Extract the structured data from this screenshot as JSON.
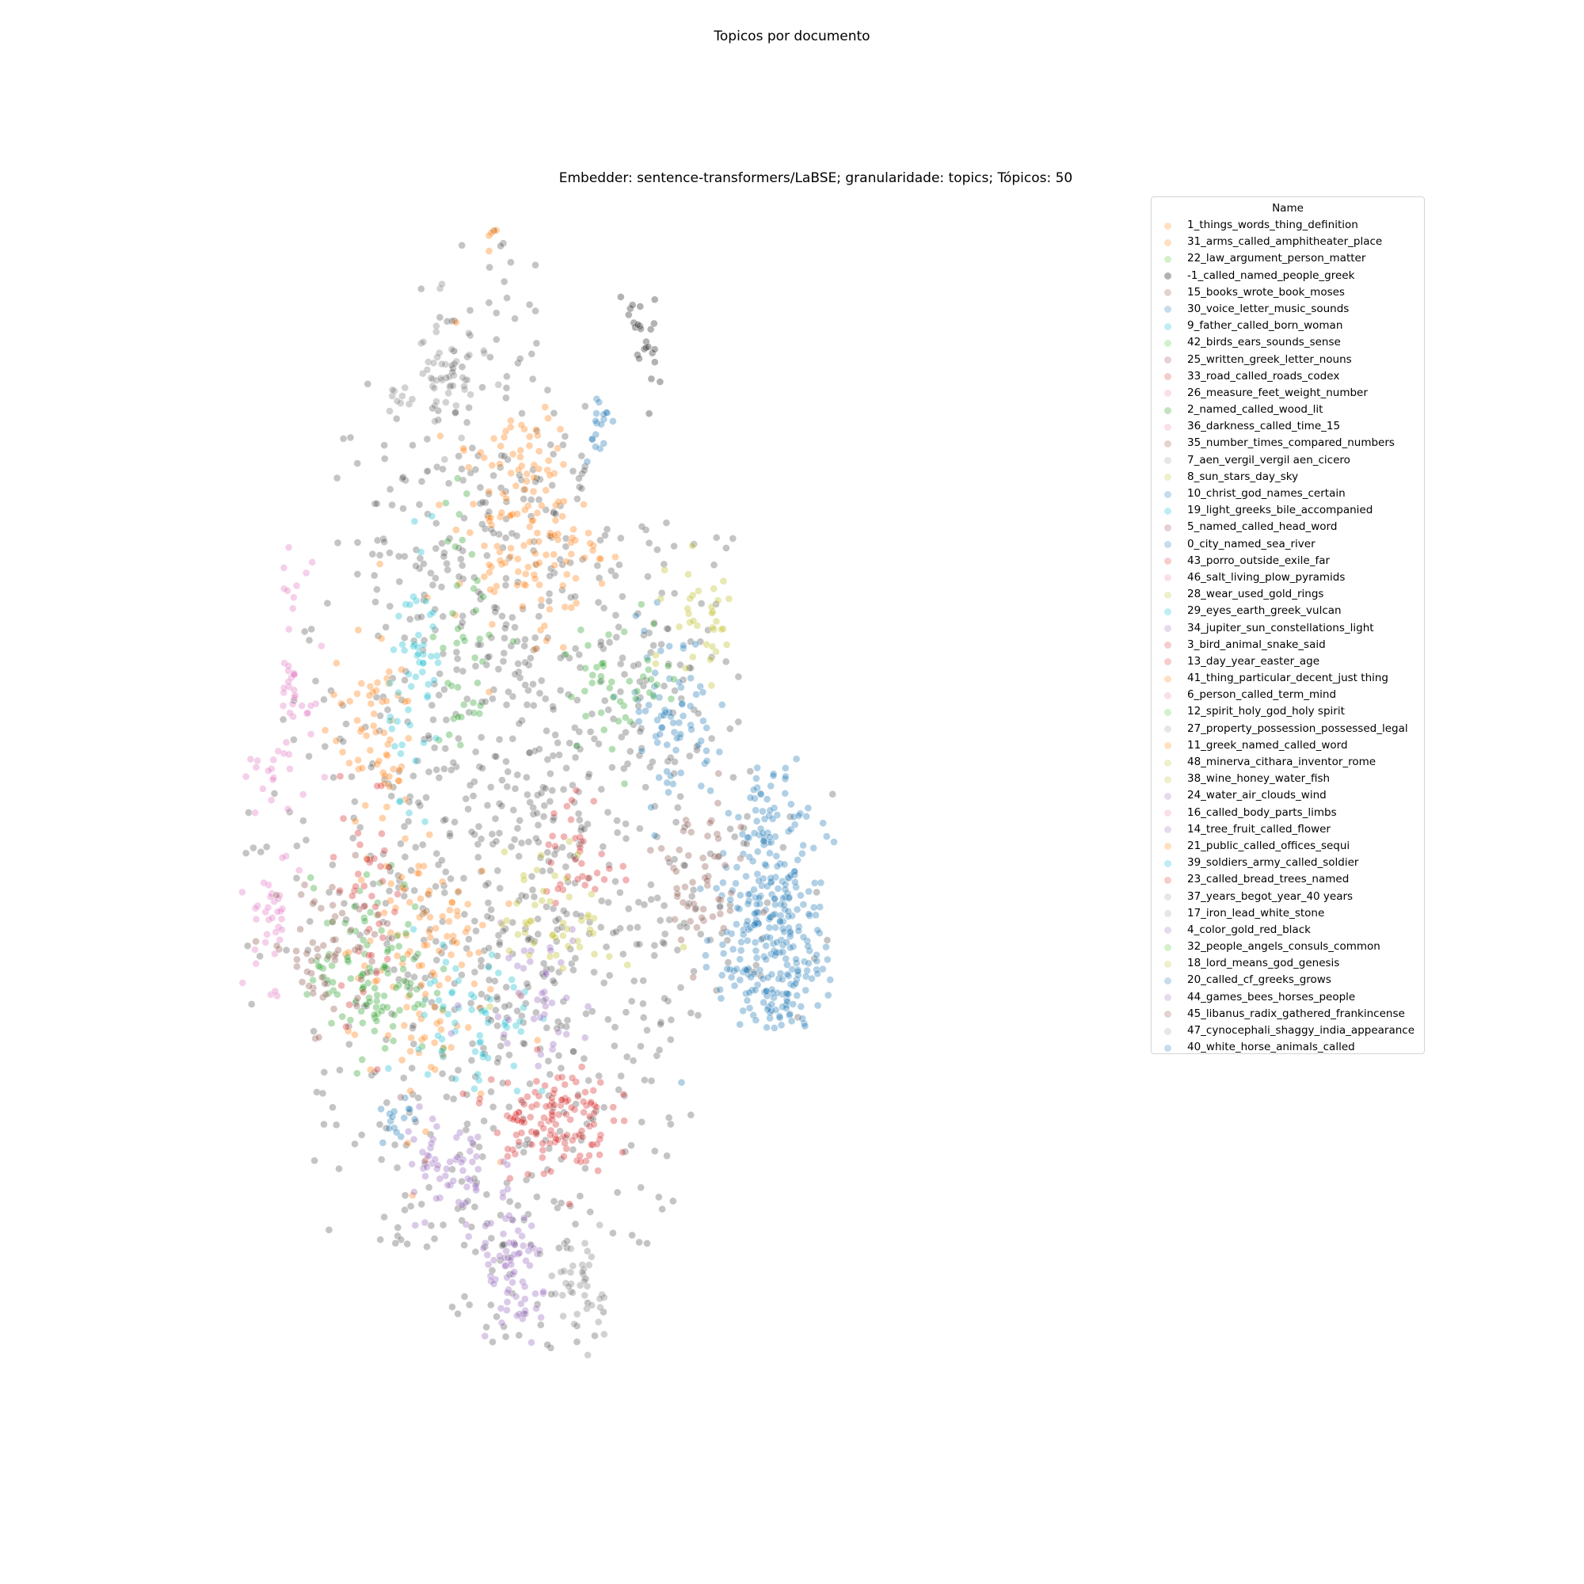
{
  "figure": {
    "suptitle": "Topicos por documento"
  },
  "chart_data": {
    "type": "scatter",
    "title": "Embedder: sentence-transformers/LaBSE; granularidade: topics; Tópicos: 50",
    "xlabel": "",
    "ylabel": "",
    "axes_visible": false,
    "grid": false,
    "legend": {
      "title": "Name",
      "placement": "top-right",
      "entries": [
        {
          "name": "1_things_words_thing_definition",
          "color": "#ffbb78"
        },
        {
          "name": "31_arms_called_amphitheater_place",
          "color": "#ffbb78"
        },
        {
          "name": "22_law_argument_person_matter",
          "color": "#98df8a"
        },
        {
          "name": "-1_called_named_people_greek",
          "color": "#555555"
        },
        {
          "name": "15_books_wrote_book_moses",
          "color": "#c49c94"
        },
        {
          "name": "30_voice_letter_music_sounds",
          "color": "#7fb2d8"
        },
        {
          "name": "9_father_called_born_woman",
          "color": "#6fd8e6"
        },
        {
          "name": "42_birds_ears_sounds_sense",
          "color": "#98df8a"
        },
        {
          "name": "25_written_greek_letter_nouns",
          "color": "#c49c94"
        },
        {
          "name": "33_road_called_roads_codex",
          "color": "#ee8f8f"
        },
        {
          "name": "26_measure_feet_weight_number",
          "color": "#f7b6d2"
        },
        {
          "name": "2_named_called_wood_lit",
          "color": "#78c26e"
        },
        {
          "name": "36_darkness_called_time_15",
          "color": "#f7b6d2"
        },
        {
          "name": "35_number_times_compared_numbers",
          "color": "#c49c94"
        },
        {
          "name": "7_aen_vergil_vergil aen_cicero",
          "color": "#c7c7c7"
        },
        {
          "name": "8_sun_stars_day_sky",
          "color": "#dbdb8d"
        },
        {
          "name": "10_christ_god_names_certain",
          "color": "#7fb2d8"
        },
        {
          "name": "19_light_greeks_bile_accompanied",
          "color": "#6fd8e6"
        },
        {
          "name": "5_named_called_head_word",
          "color": "#c49c94"
        },
        {
          "name": "0_city_named_sea_river",
          "color": "#7fb2d8"
        },
        {
          "name": "43_porro_outside_exile_far",
          "color": "#ee8f8f"
        },
        {
          "name": "46_salt_living_plow_pyramids",
          "color": "#f7b6d2"
        },
        {
          "name": "28_wear_used_gold_rings",
          "color": "#dbdb8d"
        },
        {
          "name": "29_eyes_earth_greek_vulcan",
          "color": "#6fd8e6"
        },
        {
          "name": "34_jupiter_sun_constellations_light",
          "color": "#c5b0d5"
        },
        {
          "name": "3_bird_animal_snake_said",
          "color": "#ee8f8f"
        },
        {
          "name": "13_day_year_easter_age",
          "color": "#ee8f8f"
        },
        {
          "name": "41_thing_particular_decent_just thing",
          "color": "#ffbb78"
        },
        {
          "name": "6_person_called_term_mind",
          "color": "#f7b6d2"
        },
        {
          "name": "12_spirit_holy_god_holy spirit",
          "color": "#98df8a"
        },
        {
          "name": "27_property_possession_possessed_legal",
          "color": "#c7c7c7"
        },
        {
          "name": "11_greek_named_called_word",
          "color": "#ffbb78"
        },
        {
          "name": "48_minerva_cithara_inventor_rome",
          "color": "#dbdb8d"
        },
        {
          "name": "38_wine_honey_water_fish",
          "color": "#dbdb8d"
        },
        {
          "name": "24_water_air_clouds_wind",
          "color": "#c5b0d5"
        },
        {
          "name": "16_called_body_parts_limbs",
          "color": "#f7b6d2"
        },
        {
          "name": "14_tree_fruit_called_flower",
          "color": "#c5b0d5"
        },
        {
          "name": "21_public_called_offices_sequi",
          "color": "#ffbb78"
        },
        {
          "name": "39_soldiers_army_called_soldier",
          "color": "#6fd8e6"
        },
        {
          "name": "23_called_bread_trees_named",
          "color": "#ee8f8f"
        },
        {
          "name": "37_years_begot_year_40 years",
          "color": "#c7c7c7"
        },
        {
          "name": "17_iron_lead_white_stone",
          "color": "#c7c7c7"
        },
        {
          "name": "4_color_gold_red_black",
          "color": "#c5b0d5"
        },
        {
          "name": "32_people_angels_consuls_common",
          "color": "#98df8a"
        },
        {
          "name": "18_lord_means_god_genesis",
          "color": "#dbdb8d"
        },
        {
          "name": "20_called_cf_greeks_grows",
          "color": "#7fb2d8"
        },
        {
          "name": "44_games_bees_horses_people",
          "color": "#c5b0d5"
        },
        {
          "name": "45_libanus_radix_gathered_frankincense",
          "color": "#c49c94"
        },
        {
          "name": "47_cynocephali_shaggy_india_appearance",
          "color": "#c7c7c7"
        },
        {
          "name": "40_white_horse_animals_called",
          "color": "#7fb2d8"
        }
      ]
    },
    "clusters": [
      {
        "color": "#555555",
        "x": 0.45,
        "y": 0.48,
        "sx": 0.22,
        "sy": 0.3,
        "n": 1100
      },
      {
        "color": "#1f77b4",
        "x": 0.87,
        "y": 0.38,
        "sx": 0.045,
        "sy": 0.085,
        "n": 330
      },
      {
        "color": "#1f77b4",
        "x": 0.7,
        "y": 0.58,
        "sx": 0.04,
        "sy": 0.04,
        "n": 70
      },
      {
        "color": "#1f77b4",
        "x": 0.58,
        "y": 0.84,
        "sx": 0.012,
        "sy": 0.015,
        "n": 18
      },
      {
        "color": "#1f77b4",
        "x": 0.24,
        "y": 0.22,
        "sx": 0.012,
        "sy": 0.012,
        "n": 15
      },
      {
        "color": "#ff7f0e",
        "x": 0.46,
        "y": 0.75,
        "sx": 0.06,
        "sy": 0.05,
        "n": 150
      },
      {
        "color": "#ff7f0e",
        "x": 0.28,
        "y": 0.36,
        "sx": 0.06,
        "sy": 0.07,
        "n": 120
      },
      {
        "color": "#ff7f0e",
        "x": 0.2,
        "y": 0.57,
        "sx": 0.035,
        "sy": 0.04,
        "n": 60
      },
      {
        "color": "#ff7f0e",
        "x": 0.4,
        "y": 1.0,
        "sx": 0.006,
        "sy": 0.008,
        "n": 5
      },
      {
        "color": "#2ca02c",
        "x": 0.2,
        "y": 0.35,
        "sx": 0.05,
        "sy": 0.04,
        "n": 110
      },
      {
        "color": "#2ca02c",
        "x": 0.62,
        "y": 0.61,
        "sx": 0.05,
        "sy": 0.03,
        "n": 45
      },
      {
        "color": "#2ca02c",
        "x": 0.36,
        "y": 0.66,
        "sx": 0.03,
        "sy": 0.06,
        "n": 40
      },
      {
        "color": "#d62728",
        "x": 0.5,
        "y": 0.22,
        "sx": 0.05,
        "sy": 0.025,
        "n": 130
      },
      {
        "color": "#d62728",
        "x": 0.55,
        "y": 0.45,
        "sx": 0.03,
        "sy": 0.03,
        "n": 35
      },
      {
        "color": "#d62728",
        "x": 0.19,
        "y": 0.42,
        "sx": 0.03,
        "sy": 0.05,
        "n": 40
      },
      {
        "color": "#17becf",
        "x": 0.37,
        "y": 0.3,
        "sx": 0.05,
        "sy": 0.04,
        "n": 60
      },
      {
        "color": "#17becf",
        "x": 0.28,
        "y": 0.62,
        "sx": 0.025,
        "sy": 0.05,
        "n": 55
      },
      {
        "color": "#9467bd",
        "x": 0.44,
        "y": 0.08,
        "sx": 0.03,
        "sy": 0.03,
        "n": 70
      },
      {
        "color": "#9467bd",
        "x": 0.33,
        "y": 0.17,
        "sx": 0.04,
        "sy": 0.03,
        "n": 60
      },
      {
        "color": "#9467bd",
        "x": 0.47,
        "y": 0.33,
        "sx": 0.05,
        "sy": 0.03,
        "n": 40
      },
      {
        "color": "#e377c2",
        "x": 0.04,
        "y": 0.61,
        "sx": 0.025,
        "sy": 0.05,
        "n": 55
      },
      {
        "color": "#e377c2",
        "x": 0.03,
        "y": 0.4,
        "sx": 0.02,
        "sy": 0.03,
        "n": 35
      },
      {
        "color": "#8c564b",
        "x": 0.75,
        "y": 0.43,
        "sx": 0.04,
        "sy": 0.035,
        "n": 55
      },
      {
        "color": "#8c564b",
        "x": 0.12,
        "y": 0.36,
        "sx": 0.05,
        "sy": 0.04,
        "n": 60
      },
      {
        "color": "#bcbd22",
        "x": 0.51,
        "y": 0.4,
        "sx": 0.05,
        "sy": 0.03,
        "n": 50
      },
      {
        "color": "#bcbd22",
        "x": 0.76,
        "y": 0.66,
        "sx": 0.03,
        "sy": 0.03,
        "n": 35
      },
      {
        "color": "#7f7f7f",
        "x": 0.31,
        "y": 0.88,
        "sx": 0.04,
        "sy": 0.03,
        "n": 60
      },
      {
        "color": "#7f7f7f",
        "x": 0.55,
        "y": 0.07,
        "sx": 0.03,
        "sy": 0.025,
        "n": 40
      },
      {
        "color": "#222222",
        "x": 0.65,
        "y": 0.91,
        "sx": 0.015,
        "sy": 0.03,
        "n": 25
      }
    ]
  }
}
